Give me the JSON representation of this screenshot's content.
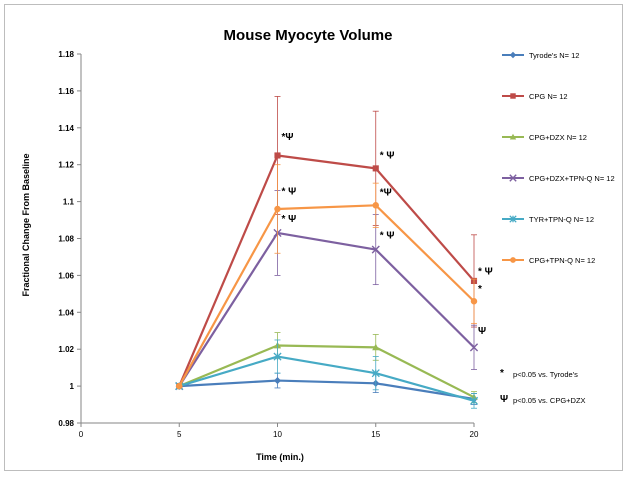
{
  "chart_data": {
    "type": "line",
    "title": "Mouse Myocyte Volume",
    "xlabel": "Time (min.)",
    "ylabel": "Fractional Change From Baseline",
    "xlim": [
      0,
      20
    ],
    "ylim": [
      0.98,
      1.18
    ],
    "xticks": [
      0,
      5,
      10,
      15,
      20
    ],
    "yticks": [
      0.98,
      1,
      1.02,
      1.04,
      1.06,
      1.08,
      1.1,
      1.12,
      1.14,
      1.16,
      1.18
    ],
    "ytick_labels": [
      "0.98",
      "1",
      "1.02",
      "1.04",
      "1.06",
      "1.08",
      "1.1",
      "1.12",
      "1.14",
      "1.16",
      "1.18"
    ],
    "x": [
      5,
      10,
      15,
      20
    ],
    "grid": false,
    "legend_position": "right",
    "series": [
      {
        "name": "Tyrode's N= 12",
        "color": "#4a7ebb",
        "marker": "diamond",
        "values": [
          1.0,
          1.003,
          1.0015,
          0.993
        ],
        "errors": [
          0,
          0.004,
          0.005,
          0.003
        ]
      },
      {
        "name": "CPG N= 12",
        "color": "#be4b48",
        "marker": "square",
        "values": [
          1.0,
          1.125,
          1.118,
          1.057
        ],
        "errors": [
          0,
          0.032,
          0.031,
          0.025
        ]
      },
      {
        "name": "CPG+DZX N= 12",
        "color": "#98b954",
        "marker": "triangle",
        "values": [
          1.0,
          1.022,
          1.021,
          0.994
        ],
        "errors": [
          0,
          0.007,
          0.007,
          0.003
        ]
      },
      {
        "name": "CPG+DZX+TPN-Q N= 12",
        "color": "#7d60a0",
        "marker": "x",
        "values": [
          1.0,
          1.083,
          1.074,
          1.021
        ],
        "errors": [
          0,
          0.023,
          0.019,
          0.012
        ]
      },
      {
        "name": "TYR+TPN-Q N= 12",
        "color": "#46aac5",
        "marker": "star",
        "values": [
          1.0,
          1.016,
          1.007,
          0.992
        ],
        "errors": [
          0,
          0.009,
          0.009,
          0.004
        ]
      },
      {
        "name": "CPG+TPN-Q N= 12",
        "color": "#f79646",
        "marker": "circle",
        "values": [
          1.0,
          1.096,
          1.098,
          1.046
        ],
        "errors": [
          0,
          0.024,
          0.012,
          0.012
        ]
      }
    ],
    "annotations": [
      {
        "x": 10,
        "y": 1.135,
        "text": "*Ψ"
      },
      {
        "x": 15,
        "y": 1.125,
        "text": "* Ψ"
      },
      {
        "x": 20,
        "y": 1.062,
        "text": "* Ψ"
      },
      {
        "x": 10,
        "y": 1.1055,
        "text": "* Ψ"
      },
      {
        "x": 15,
        "y": 1.105,
        "text": "*Ψ"
      },
      {
        "x": 10,
        "y": 1.0905,
        "text": "* Ψ"
      },
      {
        "x": 15,
        "y": 1.0815,
        "text": "* Ψ"
      },
      {
        "x": 20,
        "y": 1.0525,
        "text": "*"
      },
      {
        "x": 20,
        "y": 1.03,
        "text": "Ψ"
      }
    ],
    "footnotes": [
      {
        "symbol": "*",
        "text": "p<0.05 vs. Tyrode's"
      },
      {
        "symbol": "Ψ",
        "text": "p<0.05 vs. CPG+DZX"
      }
    ]
  }
}
